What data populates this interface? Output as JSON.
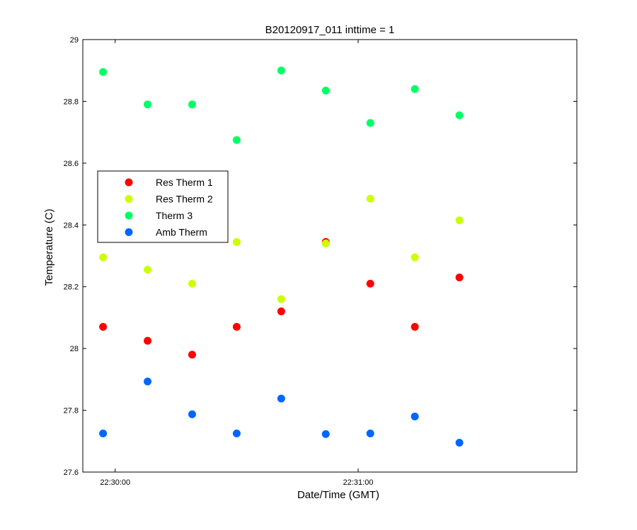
{
  "chart_data": {
    "type": "scatter",
    "title": "B20120917_011 inttime = 1",
    "xlabel": "Date/Time (GMT)",
    "ylabel": "Temperature (C)",
    "xlim": [
      "22:29:52",
      "22:31:54"
    ],
    "ylim": [
      27.6,
      29
    ],
    "yticks": [
      27.6,
      27.8,
      28,
      28.2,
      28.4,
      28.6,
      28.8,
      29
    ],
    "ytick_labels": [
      "27.6",
      "27.8",
      "28",
      "28.2",
      "28.4",
      "28.6",
      "28.8",
      "29"
    ],
    "xticks": [
      "22:30:00",
      "22:31:00"
    ],
    "xtick_labels": [
      "22:30:00",
      "22:31:00"
    ],
    "grid": false,
    "legend_position": "middle-left",
    "x": [
      "22:29:57",
      "22:30:08",
      "22:30:19",
      "22:30:30",
      "22:30:41",
      "22:30:52",
      "22:31:03",
      "22:31:14",
      "22:31:25"
    ],
    "series": [
      {
        "name": "Res Therm 1",
        "color": "#ff0000",
        "values": [
          28.07,
          28.025,
          27.98,
          28.07,
          28.12,
          28.345,
          28.21,
          28.07,
          28.23
        ]
      },
      {
        "name": "Res Therm 2",
        "color": "#ccff00",
        "values": [
          28.295,
          28.255,
          28.21,
          28.345,
          28.16,
          28.34,
          28.485,
          28.295,
          28.415
        ]
      },
      {
        "name": "Therm 3",
        "color": "#00ff66",
        "values": [
          28.895,
          28.79,
          28.79,
          28.675,
          28.9,
          28.835,
          28.73,
          28.84,
          28.755
        ]
      },
      {
        "name": "Amb Therm",
        "color": "#0066ff",
        "values": [
          27.725,
          27.893,
          27.787,
          27.725,
          27.838,
          27.723,
          27.725,
          27.78,
          27.695
        ]
      }
    ]
  }
}
